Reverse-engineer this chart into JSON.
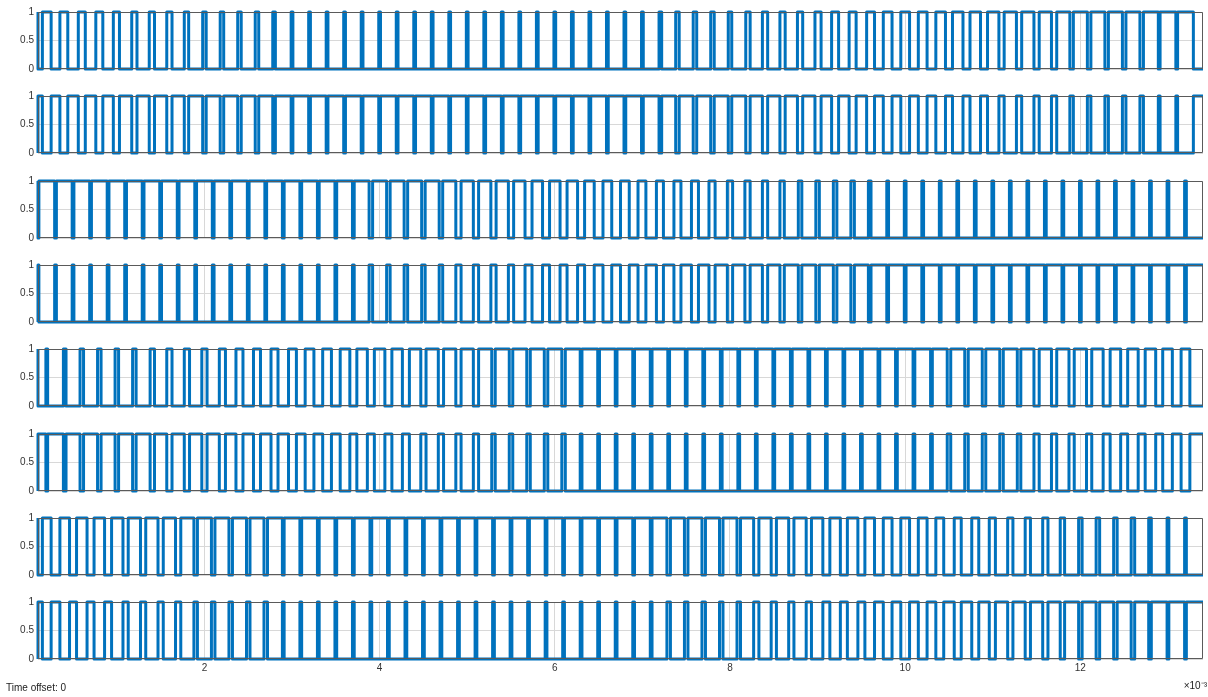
{
  "chart_data": [
    {
      "type": "step",
      "color": "#0072bd",
      "xlim": [
        0.1,
        13.4
      ],
      "ylim": [
        0,
        1
      ],
      "yticks": [
        0,
        0.5,
        1
      ],
      "grid": true,
      "tick_labels": "y",
      "xticks": [
        2,
        4,
        6,
        8,
        10,
        12
      ],
      "x": [
        0.1,
        0.15,
        0.25,
        0.35,
        0.44,
        0.56,
        0.64,
        0.76,
        0.84,
        0.96,
        1.03,
        1.17,
        1.23,
        1.37,
        1.43,
        1.57,
        1.63,
        1.77,
        1.82,
        1.98,
        2.02,
        2.18,
        2.22,
        2.38,
        2.42,
        2.58,
        2.62,
        2.78,
        2.81,
        2.99,
        3.01,
        3.19,
        3.21,
        3.39,
        3.41,
        3.59,
        3.61,
        3.79,
        3.81,
        3.99,
        4.01,
        4.19,
        4.21,
        4.39,
        4.41,
        4.59,
        4.61,
        4.79,
        4.81,
        4.99,
        5.01,
        5.19,
        5.21,
        5.39,
        5.41,
        5.59,
        5.61,
        5.79,
        5.81,
        5.99,
        6.01,
        6.19,
        6.21,
        6.39,
        6.41,
        6.59,
        6.61,
        6.79,
        6.81,
        6.99,
        7.01,
        7.19,
        7.22,
        7.38,
        7.42,
        7.58,
        7.62,
        7.78,
        7.82,
        7.98,
        8.02,
        8.18,
        8.23,
        8.37,
        8.43,
        8.57,
        8.63,
        8.77,
        8.83,
        8.97,
        9.04,
        9.16,
        9.24,
        9.36,
        9.44,
        9.56,
        9.65,
        9.75,
        9.85,
        9.95,
        10.05,
        10.15,
        10.25,
        10.35,
        10.46,
        10.54,
        10.66,
        10.74,
        10.86,
        10.94,
        11.07,
        11.13,
        11.27,
        11.33,
        11.47,
        11.53,
        11.67,
        11.73,
        11.88,
        11.92,
        12.08,
        12.12,
        12.28,
        12.32,
        12.48,
        12.52,
        12.68,
        12.72,
        12.89,
        12.91,
        13.09,
        13.11,
        13.29,
        13.31,
        13.4
      ],
      "values": [
        1,
        0,
        1,
        0,
        1,
        0,
        1,
        0,
        1,
        0,
        1,
        0,
        1,
        0,
        1,
        0,
        1,
        0,
        1,
        0,
        1,
        0,
        1,
        0,
        1,
        0,
        1,
        0,
        1,
        0,
        1,
        0,
        1,
        0,
        1,
        0,
        1,
        0,
        1,
        0,
        1,
        0,
        1,
        0,
        1,
        0,
        1,
        0,
        1,
        0,
        1,
        0,
        1,
        0,
        1,
        0,
        1,
        0,
        1,
        0,
        1,
        0,
        1,
        0,
        1,
        0,
        1,
        0,
        1,
        0,
        1,
        0,
        1,
        0,
        1,
        0,
        1,
        0,
        1,
        0,
        1,
        0,
        1,
        0,
        1,
        0,
        1,
        0,
        1,
        0,
        1,
        0,
        1,
        0,
        1,
        0,
        1,
        0,
        1,
        0,
        1,
        0,
        1,
        0,
        1,
        0,
        1,
        0,
        1,
        0,
        1,
        0,
        1,
        0,
        1,
        0,
        1,
        0,
        1,
        0,
        1,
        0,
        1,
        0,
        1,
        0,
        1,
        0,
        1,
        0,
        1,
        0,
        1,
        0,
        0
      ]
    },
    {
      "type": "step",
      "color": "#0072bd",
      "xlim": [
        0.1,
        13.4
      ],
      "ylim": [
        0,
        1
      ],
      "yticks": [
        0,
        0.5,
        1
      ],
      "grid": true,
      "tick_labels": "y",
      "xticks": [
        2,
        4,
        6,
        8,
        10,
        12
      ],
      "x": [
        0.1,
        0.15,
        0.25,
        0.35,
        0.44,
        0.56,
        0.64,
        0.76,
        0.84,
        0.96,
        1.03,
        1.17,
        1.23,
        1.37,
        1.43,
        1.57,
        1.63,
        1.77,
        1.82,
        1.98,
        2.02,
        2.18,
        2.22,
        2.38,
        2.42,
        2.58,
        2.62,
        2.78,
        2.81,
        2.99,
        3.01,
        3.19,
        3.21,
        3.39,
        3.41,
        3.59,
        3.61,
        3.79,
        3.81,
        3.99,
        4.01,
        4.19,
        4.21,
        4.39,
        4.41,
        4.59,
        4.61,
        4.79,
        4.81,
        4.99,
        5.01,
        5.19,
        5.21,
        5.39,
        5.41,
        5.59,
        5.61,
        5.79,
        5.81,
        5.99,
        6.01,
        6.19,
        6.21,
        6.39,
        6.41,
        6.59,
        6.61,
        6.79,
        6.81,
        6.99,
        7.01,
        7.19,
        7.22,
        7.38,
        7.42,
        7.58,
        7.62,
        7.78,
        7.82,
        7.98,
        8.02,
        8.18,
        8.23,
        8.37,
        8.43,
        8.57,
        8.63,
        8.77,
        8.83,
        8.97,
        9.04,
        9.16,
        9.24,
        9.36,
        9.44,
        9.56,
        9.65,
        9.75,
        9.85,
        9.95,
        10.05,
        10.15,
        10.25,
        10.35,
        10.46,
        10.54,
        10.66,
        10.74,
        10.86,
        10.94,
        11.07,
        11.13,
        11.27,
        11.33,
        11.47,
        11.53,
        11.67,
        11.73,
        11.88,
        11.92,
        12.08,
        12.12,
        12.28,
        12.32,
        12.48,
        12.52,
        12.68,
        12.72,
        12.89,
        12.91,
        13.09,
        13.11,
        13.29,
        13.31,
        13.4
      ],
      "values": [
        0,
        1,
        0,
        1,
        0,
        1,
        0,
        1,
        0,
        1,
        0,
        1,
        0,
        1,
        0,
        1,
        0,
        1,
        0,
        1,
        0,
        1,
        0,
        1,
        0,
        1,
        0,
        1,
        0,
        1,
        0,
        1,
        0,
        1,
        0,
        1,
        0,
        1,
        0,
        1,
        0,
        1,
        0,
        1,
        0,
        1,
        0,
        1,
        0,
        1,
        0,
        1,
        0,
        1,
        0,
        1,
        0,
        1,
        0,
        1,
        0,
        1,
        0,
        1,
        0,
        1,
        0,
        1,
        0,
        1,
        0,
        1,
        0,
        1,
        0,
        1,
        0,
        1,
        0,
        1,
        0,
        1,
        0,
        1,
        0,
        1,
        0,
        1,
        0,
        1,
        0,
        1,
        0,
        1,
        0,
        1,
        0,
        1,
        0,
        1,
        0,
        1,
        0,
        1,
        0,
        1,
        0,
        1,
        0,
        1,
        0,
        1,
        0,
        1,
        0,
        1,
        0,
        1,
        0,
        1,
        0,
        1,
        0,
        1,
        0,
        1,
        0,
        1,
        0,
        1,
        0,
        1,
        0,
        1,
        1
      ]
    },
    {
      "type": "step",
      "color": "#0072bd",
      "xlim": [
        0.1,
        13.4
      ],
      "ylim": [
        0,
        1
      ],
      "yticks": [
        0,
        0.5,
        1
      ],
      "grid": true,
      "tick_labels": "y",
      "xticks": [
        2,
        4,
        6,
        8,
        10,
        12
      ],
      "x": [
        0.1,
        0.11,
        0.29,
        0.31,
        0.49,
        0.51,
        0.69,
        0.71,
        0.89,
        0.91,
        1.09,
        1.11,
        1.29,
        1.31,
        1.49,
        1.51,
        1.69,
        1.71,
        1.89,
        1.91,
        2.09,
        2.11,
        2.29,
        2.31,
        2.49,
        2.51,
        2.69,
        2.71,
        2.89,
        2.91,
        3.09,
        3.11,
        3.29,
        3.31,
        3.49,
        3.51,
        3.69,
        3.71,
        3.88,
        3.92,
        4.08,
        4.12,
        4.28,
        4.32,
        4.48,
        4.52,
        4.68,
        4.72,
        4.87,
        4.93,
        5.07,
        5.13,
        5.27,
        5.33,
        5.47,
        5.53,
        5.66,
        5.74,
        5.86,
        5.94,
        6.06,
        6.14,
        6.26,
        6.34,
        6.45,
        6.55,
        6.65,
        6.75,
        6.85,
        6.95,
        7.04,
        7.16,
        7.24,
        7.36,
        7.44,
        7.56,
        7.64,
        7.76,
        7.83,
        7.97,
        8.03,
        8.17,
        8.23,
        8.37,
        8.43,
        8.57,
        8.62,
        8.78,
        8.82,
        8.98,
        9.02,
        9.18,
        9.22,
        9.38,
        9.42,
        9.58,
        9.61,
        9.79,
        9.81,
        9.99,
        10.01,
        10.19,
        10.21,
        10.39,
        10.41,
        10.59,
        10.61,
        10.79,
        10.81,
        10.99,
        11.01,
        11.19,
        11.21,
        11.39,
        11.41,
        11.59,
        11.61,
        11.79,
        11.81,
        11.99,
        12.01,
        12.19,
        12.21,
        12.39,
        12.41,
        12.59,
        12.61,
        12.79,
        12.81,
        12.99,
        13.01,
        13.19,
        13.21,
        13.39,
        13.4
      ],
      "values": [
        1,
        0,
        1,
        0,
        1,
        0,
        1,
        0,
        1,
        0,
        1,
        0,
        1,
        0,
        1,
        0,
        1,
        0,
        1,
        0,
        1,
        0,
        1,
        0,
        1,
        0,
        1,
        0,
        1,
        0,
        1,
        0,
        1,
        0,
        1,
        0,
        1,
        0,
        1,
        0,
        1,
        0,
        1,
        0,
        1,
        0,
        1,
        0,
        1,
        0,
        1,
        0,
        1,
        0,
        1,
        0,
        1,
        0,
        1,
        0,
        1,
        0,
        1,
        0,
        1,
        0,
        1,
        0,
        1,
        0,
        1,
        0,
        1,
        0,
        1,
        0,
        1,
        0,
        1,
        0,
        1,
        0,
        1,
        0,
        1,
        0,
        1,
        0,
        1,
        0,
        1,
        0,
        1,
        0,
        1,
        0,
        1,
        0,
        1,
        0,
        1,
        0,
        1,
        0,
        1,
        0,
        1,
        0,
        1,
        0,
        1,
        0,
        1,
        0,
        1,
        0,
        1,
        0,
        1,
        0,
        1,
        0,
        1,
        0,
        1,
        0,
        1,
        0,
        1,
        0,
        1,
        0,
        1,
        0,
        0
      ]
    },
    {
      "type": "step",
      "color": "#0072bd",
      "xlim": [
        0.1,
        13.4
      ],
      "ylim": [
        0,
        1
      ],
      "yticks": [
        0,
        0.5,
        1
      ],
      "grid": true,
      "tick_labels": "y",
      "xticks": [
        2,
        4,
        6,
        8,
        10,
        12
      ],
      "x": [
        0.1,
        0.11,
        0.29,
        0.31,
        0.49,
        0.51,
        0.69,
        0.71,
        0.89,
        0.91,
        1.09,
        1.11,
        1.29,
        1.31,
        1.49,
        1.51,
        1.69,
        1.71,
        1.89,
        1.91,
        2.09,
        2.11,
        2.29,
        2.31,
        2.49,
        2.51,
        2.69,
        2.71,
        2.89,
        2.91,
        3.09,
        3.11,
        3.29,
        3.31,
        3.49,
        3.51,
        3.69,
        3.71,
        3.88,
        3.92,
        4.08,
        4.12,
        4.28,
        4.32,
        4.48,
        4.52,
        4.68,
        4.72,
        4.87,
        4.93,
        5.07,
        5.13,
        5.27,
        5.33,
        5.47,
        5.53,
        5.66,
        5.74,
        5.86,
        5.94,
        6.06,
        6.14,
        6.26,
        6.34,
        6.45,
        6.55,
        6.65,
        6.75,
        6.85,
        6.95,
        7.04,
        7.16,
        7.24,
        7.36,
        7.44,
        7.56,
        7.64,
        7.76,
        7.83,
        7.97,
        8.03,
        8.17,
        8.23,
        8.37,
        8.43,
        8.57,
        8.62,
        8.78,
        8.82,
        8.98,
        9.02,
        9.18,
        9.22,
        9.38,
        9.42,
        9.58,
        9.61,
        9.79,
        9.81,
        9.99,
        10.01,
        10.19,
        10.21,
        10.39,
        10.41,
        10.59,
        10.61,
        10.79,
        10.81,
        10.99,
        11.01,
        11.19,
        11.21,
        11.39,
        11.41,
        11.59,
        11.61,
        11.79,
        11.81,
        11.99,
        12.01,
        12.19,
        12.21,
        12.39,
        12.41,
        12.59,
        12.61,
        12.79,
        12.81,
        12.99,
        13.01,
        13.19,
        13.21,
        13.39,
        13.4
      ],
      "values": [
        0,
        1,
        0,
        1,
        0,
        1,
        0,
        1,
        0,
        1,
        0,
        1,
        0,
        1,
        0,
        1,
        0,
        1,
        0,
        1,
        0,
        1,
        0,
        1,
        0,
        1,
        0,
        1,
        0,
        1,
        0,
        1,
        0,
        1,
        0,
        1,
        0,
        1,
        0,
        1,
        0,
        1,
        0,
        1,
        0,
        1,
        0,
        1,
        0,
        1,
        0,
        1,
        0,
        1,
        0,
        1,
        0,
        1,
        0,
        1,
        0,
        1,
        0,
        1,
        0,
        1,
        0,
        1,
        0,
        1,
        0,
        1,
        0,
        1,
        0,
        1,
        0,
        1,
        0,
        1,
        0,
        1,
        0,
        1,
        0,
        1,
        0,
        1,
        0,
        1,
        0,
        1,
        0,
        1,
        0,
        1,
        0,
        1,
        0,
        1,
        0,
        1,
        0,
        1,
        0,
        1,
        0,
        1,
        0,
        1,
        0,
        1,
        0,
        1,
        0,
        1,
        0,
        1,
        0,
        1,
        0,
        1,
        0,
        1,
        0,
        1,
        0,
        1,
        0,
        1,
        0,
        1,
        0,
        1,
        1
      ]
    },
    {
      "type": "step",
      "color": "#0072bd",
      "xlim": [
        0.1,
        13.4
      ],
      "ylim": [
        0,
        1
      ],
      "yticks": [
        0,
        0.5,
        1
      ],
      "grid": true,
      "tick_labels": "y",
      "xticks": [
        2,
        4,
        6,
        8,
        10,
        12
      ],
      "x": [
        0.1,
        0.19,
        0.21,
        0.39,
        0.42,
        0.58,
        0.62,
        0.78,
        0.82,
        0.98,
        1.02,
        1.18,
        1.22,
        1.38,
        1.43,
        1.57,
        1.63,
        1.77,
        1.83,
        1.97,
        2.03,
        2.17,
        2.24,
        2.36,
        2.44,
        2.56,
        2.64,
        2.76,
        2.84,
        2.96,
        3.05,
        3.15,
        3.25,
        3.35,
        3.45,
        3.55,
        3.66,
        3.74,
        3.86,
        3.94,
        4.06,
        4.14,
        4.26,
        4.34,
        4.47,
        4.53,
        4.67,
        4.73,
        4.87,
        4.93,
        5.07,
        5.13,
        5.28,
        5.32,
        5.48,
        5.52,
        5.68,
        5.72,
        5.88,
        5.92,
        6.08,
        6.12,
        6.29,
        6.31,
        6.49,
        6.51,
        6.69,
        6.71,
        6.89,
        6.91,
        7.09,
        7.11,
        7.29,
        7.31,
        7.49,
        7.51,
        7.69,
        7.71,
        7.89,
        7.91,
        8.09,
        8.11,
        8.29,
        8.31,
        8.49,
        8.51,
        8.69,
        8.71,
        8.89,
        8.91,
        9.09,
        9.11,
        9.29,
        9.31,
        9.49,
        9.51,
        9.69,
        9.71,
        9.89,
        9.91,
        10.09,
        10.11,
        10.29,
        10.31,
        10.48,
        10.52,
        10.68,
        10.72,
        10.88,
        10.92,
        11.08,
        11.12,
        11.28,
        11.32,
        11.47,
        11.53,
        11.67,
        11.73,
        11.87,
        11.93,
        12.07,
        12.13,
        12.26,
        12.34,
        12.46,
        12.54,
        12.66,
        12.74,
        12.86,
        12.94,
        13.05,
        13.15,
        13.25,
        13.35,
        13.4
      ],
      "values": [
        1,
        0,
        1,
        0,
        1,
        0,
        1,
        0,
        1,
        0,
        1,
        0,
        1,
        0,
        1,
        0,
        1,
        0,
        1,
        0,
        1,
        0,
        1,
        0,
        1,
        0,
        1,
        0,
        1,
        0,
        1,
        0,
        1,
        0,
        1,
        0,
        1,
        0,
        1,
        0,
        1,
        0,
        1,
        0,
        1,
        0,
        1,
        0,
        1,
        0,
        1,
        0,
        1,
        0,
        1,
        0,
        1,
        0,
        1,
        0,
        1,
        0,
        1,
        0,
        1,
        0,
        1,
        0,
        1,
        0,
        1,
        0,
        1,
        0,
        1,
        0,
        1,
        0,
        1,
        0,
        1,
        0,
        1,
        0,
        1,
        0,
        1,
        0,
        1,
        0,
        1,
        0,
        1,
        0,
        1,
        0,
        1,
        0,
        1,
        0,
        1,
        0,
        1,
        0,
        1,
        0,
        1,
        0,
        1,
        0,
        1,
        0,
        1,
        0,
        1,
        0,
        1,
        0,
        1,
        0,
        1,
        0,
        1,
        0,
        1,
        0,
        1,
        0,
        1,
        0,
        1,
        0,
        1,
        0,
        0
      ]
    },
    {
      "type": "step",
      "color": "#0072bd",
      "xlim": [
        0.1,
        13.4
      ],
      "ylim": [
        0,
        1
      ],
      "yticks": [
        0,
        0.5,
        1
      ],
      "grid": true,
      "tick_labels": "y",
      "xticks": [
        2,
        4,
        6,
        8,
        10,
        12
      ],
      "x": [
        0.1,
        0.19,
        0.21,
        0.39,
        0.42,
        0.58,
        0.62,
        0.78,
        0.82,
        0.98,
        1.02,
        1.18,
        1.22,
        1.38,
        1.43,
        1.57,
        1.63,
        1.77,
        1.83,
        1.97,
        2.03,
        2.17,
        2.24,
        2.36,
        2.44,
        2.56,
        2.64,
        2.76,
        2.84,
        2.96,
        3.05,
        3.15,
        3.25,
        3.35,
        3.45,
        3.55,
        3.66,
        3.74,
        3.86,
        3.94,
        4.06,
        4.14,
        4.26,
        4.34,
        4.47,
        4.53,
        4.67,
        4.73,
        4.87,
        4.93,
        5.07,
        5.13,
        5.28,
        5.32,
        5.48,
        5.52,
        5.68,
        5.72,
        5.88,
        5.92,
        6.08,
        6.12,
        6.29,
        6.31,
        6.49,
        6.51,
        6.69,
        6.71,
        6.89,
        6.91,
        7.09,
        7.11,
        7.29,
        7.31,
        7.49,
        7.51,
        7.69,
        7.71,
        7.89,
        7.91,
        8.09,
        8.11,
        8.29,
        8.31,
        8.49,
        8.51,
        8.69,
        8.71,
        8.89,
        8.91,
        9.09,
        9.11,
        9.29,
        9.31,
        9.49,
        9.51,
        9.69,
        9.71,
        9.89,
        9.91,
        10.09,
        10.11,
        10.29,
        10.31,
        10.48,
        10.52,
        10.68,
        10.72,
        10.88,
        10.92,
        11.08,
        11.12,
        11.28,
        11.32,
        11.47,
        11.53,
        11.67,
        11.73,
        11.87,
        11.93,
        12.07,
        12.13,
        12.26,
        12.34,
        12.46,
        12.54,
        12.66,
        12.74,
        12.86,
        12.94,
        13.05,
        13.15,
        13.25,
        13.35,
        13.4
      ],
      "values": [
        0,
        1,
        0,
        1,
        0,
        1,
        0,
        1,
        0,
        1,
        0,
        1,
        0,
        1,
        0,
        1,
        0,
        1,
        0,
        1,
        0,
        1,
        0,
        1,
        0,
        1,
        0,
        1,
        0,
        1,
        0,
        1,
        0,
        1,
        0,
        1,
        0,
        1,
        0,
        1,
        0,
        1,
        0,
        1,
        0,
        1,
        0,
        1,
        0,
        1,
        0,
        1,
        0,
        1,
        0,
        1,
        0,
        1,
        0,
        1,
        0,
        1,
        0,
        1,
        0,
        1,
        0,
        1,
        0,
        1,
        0,
        1,
        0,
        1,
        0,
        1,
        0,
        1,
        0,
        1,
        0,
        1,
        0,
        1,
        0,
        1,
        0,
        1,
        0,
        1,
        0,
        1,
        0,
        1,
        0,
        1,
        0,
        1,
        0,
        1,
        0,
        1,
        0,
        1,
        0,
        1,
        0,
        1,
        0,
        1,
        0,
        1,
        0,
        1,
        0,
        1,
        0,
        1,
        0,
        1,
        0,
        1,
        0,
        1,
        0,
        1,
        0,
        1,
        0,
        1,
        0,
        1,
        0,
        1,
        1
      ]
    },
    {
      "type": "step",
      "color": "#0072bd",
      "xlim": [
        0.1,
        13.4
      ],
      "ylim": [
        0,
        1
      ],
      "yticks": [
        0,
        0.5,
        1
      ],
      "grid": true,
      "tick_labels": "y",
      "xticks": [
        2,
        4,
        6,
        8,
        10,
        12
      ],
      "x": [
        0.1,
        0.15,
        0.25,
        0.35,
        0.46,
        0.54,
        0.66,
        0.74,
        0.86,
        0.94,
        1.07,
        1.13,
        1.27,
        1.33,
        1.47,
        1.53,
        1.67,
        1.73,
        1.88,
        1.92,
        2.08,
        2.12,
        2.28,
        2.32,
        2.48,
        2.52,
        2.68,
        2.72,
        2.89,
        2.91,
        3.09,
        3.11,
        3.29,
        3.31,
        3.49,
        3.51,
        3.69,
        3.71,
        3.89,
        3.91,
        4.09,
        4.11,
        4.29,
        4.31,
        4.49,
        4.51,
        4.69,
        4.71,
        4.89,
        4.91,
        5.09,
        5.11,
        5.29,
        5.31,
        5.49,
        5.51,
        5.69,
        5.71,
        5.89,
        5.91,
        6.09,
        6.11,
        6.29,
        6.31,
        6.49,
        6.51,
        6.69,
        6.71,
        6.89,
        6.91,
        7.09,
        7.11,
        7.28,
        7.32,
        7.48,
        7.52,
        7.68,
        7.72,
        7.88,
        7.92,
        8.08,
        8.12,
        8.27,
        8.33,
        8.47,
        8.53,
        8.67,
        8.73,
        8.87,
        8.93,
        9.06,
        9.14,
        9.26,
        9.34,
        9.46,
        9.54,
        9.65,
        9.75,
        9.85,
        9.95,
        10.05,
        10.15,
        10.25,
        10.35,
        10.44,
        10.56,
        10.64,
        10.76,
        10.84,
        10.96,
        11.03,
        11.17,
        11.23,
        11.37,
        11.43,
        11.57,
        11.63,
        11.77,
        11.82,
        11.98,
        12.02,
        12.18,
        12.22,
        12.38,
        12.42,
        12.58,
        12.62,
        12.78,
        12.81,
        12.99,
        13.01,
        13.19,
        13.21,
        13.39,
        13.4
      ],
      "values": [
        1,
        0,
        1,
        0,
        1,
        0,
        1,
        0,
        1,
        0,
        1,
        0,
        1,
        0,
        1,
        0,
        1,
        0,
        1,
        0,
        1,
        0,
        1,
        0,
        1,
        0,
        1,
        0,
        1,
        0,
        1,
        0,
        1,
        0,
        1,
        0,
        1,
        0,
        1,
        0,
        1,
        0,
        1,
        0,
        1,
        0,
        1,
        0,
        1,
        0,
        1,
        0,
        1,
        0,
        1,
        0,
        1,
        0,
        1,
        0,
        1,
        0,
        1,
        0,
        1,
        0,
        1,
        0,
        1,
        0,
        1,
        0,
        1,
        0,
        1,
        0,
        1,
        0,
        1,
        0,
        1,
        0,
        1,
        0,
        1,
        0,
        1,
        0,
        1,
        0,
        1,
        0,
        1,
        0,
        1,
        0,
        1,
        0,
        1,
        0,
        1,
        0,
        1,
        0,
        1,
        0,
        1,
        0,
        1,
        0,
        1,
        0,
        1,
        0,
        1,
        0,
        1,
        0,
        1,
        0,
        1,
        0,
        1,
        0,
        1,
        0,
        1,
        0,
        1,
        0,
        1,
        0,
        1,
        0,
        0
      ]
    },
    {
      "type": "step",
      "color": "#0072bd",
      "xlim": [
        0.1,
        13.4
      ],
      "ylim": [
        0,
        1
      ],
      "yticks": [
        0,
        0.5,
        1
      ],
      "grid": true,
      "xticks": [
        2,
        4,
        6,
        8,
        10,
        12
      ],
      "annotations": [
        "×10⁻³",
        "Time offset: 0"
      ],
      "x": [
        0.1,
        0.15,
        0.25,
        0.35,
        0.46,
        0.54,
        0.66,
        0.74,
        0.86,
        0.94,
        1.07,
        1.13,
        1.27,
        1.33,
        1.47,
        1.53,
        1.67,
        1.73,
        1.88,
        1.92,
        2.08,
        2.12,
        2.28,
        2.32,
        2.48,
        2.52,
        2.68,
        2.72,
        2.89,
        2.91,
        3.09,
        3.11,
        3.29,
        3.31,
        3.49,
        3.51,
        3.69,
        3.71,
        3.89,
        3.91,
        4.09,
        4.11,
        4.29,
        4.31,
        4.49,
        4.51,
        4.69,
        4.71,
        4.89,
        4.91,
        5.09,
        5.11,
        5.29,
        5.31,
        5.49,
        5.51,
        5.69,
        5.71,
        5.89,
        5.91,
        6.09,
        6.11,
        6.29,
        6.31,
        6.49,
        6.51,
        6.69,
        6.71,
        6.89,
        6.91,
        7.09,
        7.11,
        7.28,
        7.32,
        7.48,
        7.52,
        7.68,
        7.72,
        7.88,
        7.92,
        8.08,
        8.12,
        8.27,
        8.33,
        8.47,
        8.53,
        8.67,
        8.73,
        8.87,
        8.93,
        9.06,
        9.14,
        9.26,
        9.34,
        9.46,
        9.54,
        9.65,
        9.75,
        9.85,
        9.95,
        10.05,
        10.15,
        10.25,
        10.35,
        10.44,
        10.56,
        10.64,
        10.76,
        10.84,
        10.96,
        11.03,
        11.17,
        11.23,
        11.37,
        11.43,
        11.57,
        11.63,
        11.77,
        11.82,
        11.98,
        12.02,
        12.18,
        12.22,
        12.38,
        12.42,
        12.58,
        12.62,
        12.78,
        12.81,
        12.99,
        13.01,
        13.19,
        13.21,
        13.39,
        13.4
      ],
      "values": [
        0,
        1,
        0,
        1,
        0,
        1,
        0,
        1,
        0,
        1,
        0,
        1,
        0,
        1,
        0,
        1,
        0,
        1,
        0,
        1,
        0,
        1,
        0,
        1,
        0,
        1,
        0,
        1,
        0,
        1,
        0,
        1,
        0,
        1,
        0,
        1,
        0,
        1,
        0,
        1,
        0,
        1,
        0,
        1,
        0,
        1,
        0,
        1,
        0,
        1,
        0,
        1,
        0,
        1,
        0,
        1,
        0,
        1,
        0,
        1,
        0,
        1,
        0,
        1,
        0,
        1,
        0,
        1,
        0,
        1,
        0,
        1,
        0,
        1,
        0,
        1,
        0,
        1,
        0,
        1,
        0,
        1,
        0,
        1,
        0,
        1,
        0,
        1,
        0,
        1,
        0,
        1,
        0,
        1,
        0,
        1,
        0,
        1,
        0,
        1,
        0,
        1,
        0,
        1,
        0,
        1,
        0,
        1,
        0,
        1,
        0,
        1,
        0,
        1,
        0,
        1,
        0,
        1,
        0,
        1,
        0,
        1,
        0,
        1,
        0,
        1,
        0,
        1,
        0,
        1,
        0,
        1,
        0,
        1,
        1
      ]
    }
  ]
}
